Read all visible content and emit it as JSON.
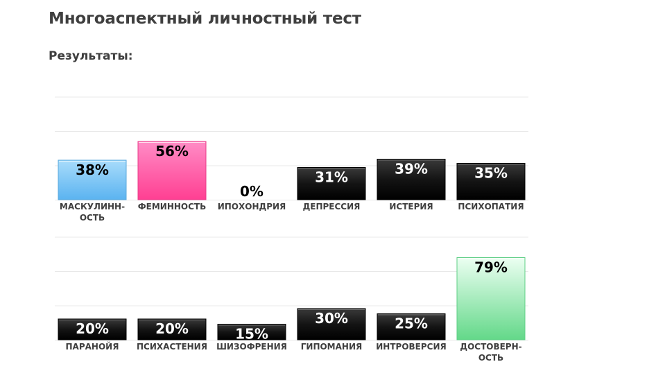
{
  "page": {
    "title": "Многоаспектный личностный тест",
    "results_heading": "Результаты:"
  },
  "colors": {
    "blue_bar": "#7cc8f7",
    "pink_bar": "#ff5aa5",
    "black_bar": "#151515",
    "green_bar": "#8ee8aa",
    "grid": "#e8e8e8"
  },
  "chart_data": [
    {
      "type": "bar",
      "title": "",
      "ylim": [
        0,
        100
      ],
      "grid": true,
      "categories": [
        [
          "МАСКУЛИНН-",
          "ОСТЬ"
        ],
        [
          "ФЕМИННОСТЬ"
        ],
        [
          "ИПОХОНДРИЯ"
        ],
        [
          "ДЕПРЕССИЯ"
        ],
        [
          "ИСТЕРИЯ"
        ],
        [
          "ПСИХОПАТИЯ"
        ]
      ],
      "values": [
        38,
        56,
        0,
        31,
        39,
        35
      ],
      "value_labels": [
        "38%",
        "56%",
        "0%",
        "31%",
        "39%",
        "35%"
      ],
      "bar_styles": [
        "blue",
        "pink",
        "black",
        "black",
        "black",
        "black"
      ]
    },
    {
      "type": "bar",
      "title": "",
      "ylim": [
        0,
        100
      ],
      "grid": true,
      "categories": [
        [
          "ПАРАНОЙЯ"
        ],
        [
          "ПСИХАСТЕНИЯ"
        ],
        [
          "ШИЗОФРЕНИЯ"
        ],
        [
          "ГИПОМАНИЯ"
        ],
        [
          "ИНТРОВЕРСИЯ"
        ],
        [
          "ДОСТОВЕРН-",
          "ОСТЬ"
        ]
      ],
      "values": [
        20,
        20,
        15,
        30,
        25,
        79
      ],
      "value_labels": [
        "20%",
        "20%",
        "15%",
        "30%",
        "25%",
        "79%"
      ],
      "bar_styles": [
        "black",
        "black",
        "black",
        "black",
        "black",
        "green"
      ]
    }
  ]
}
